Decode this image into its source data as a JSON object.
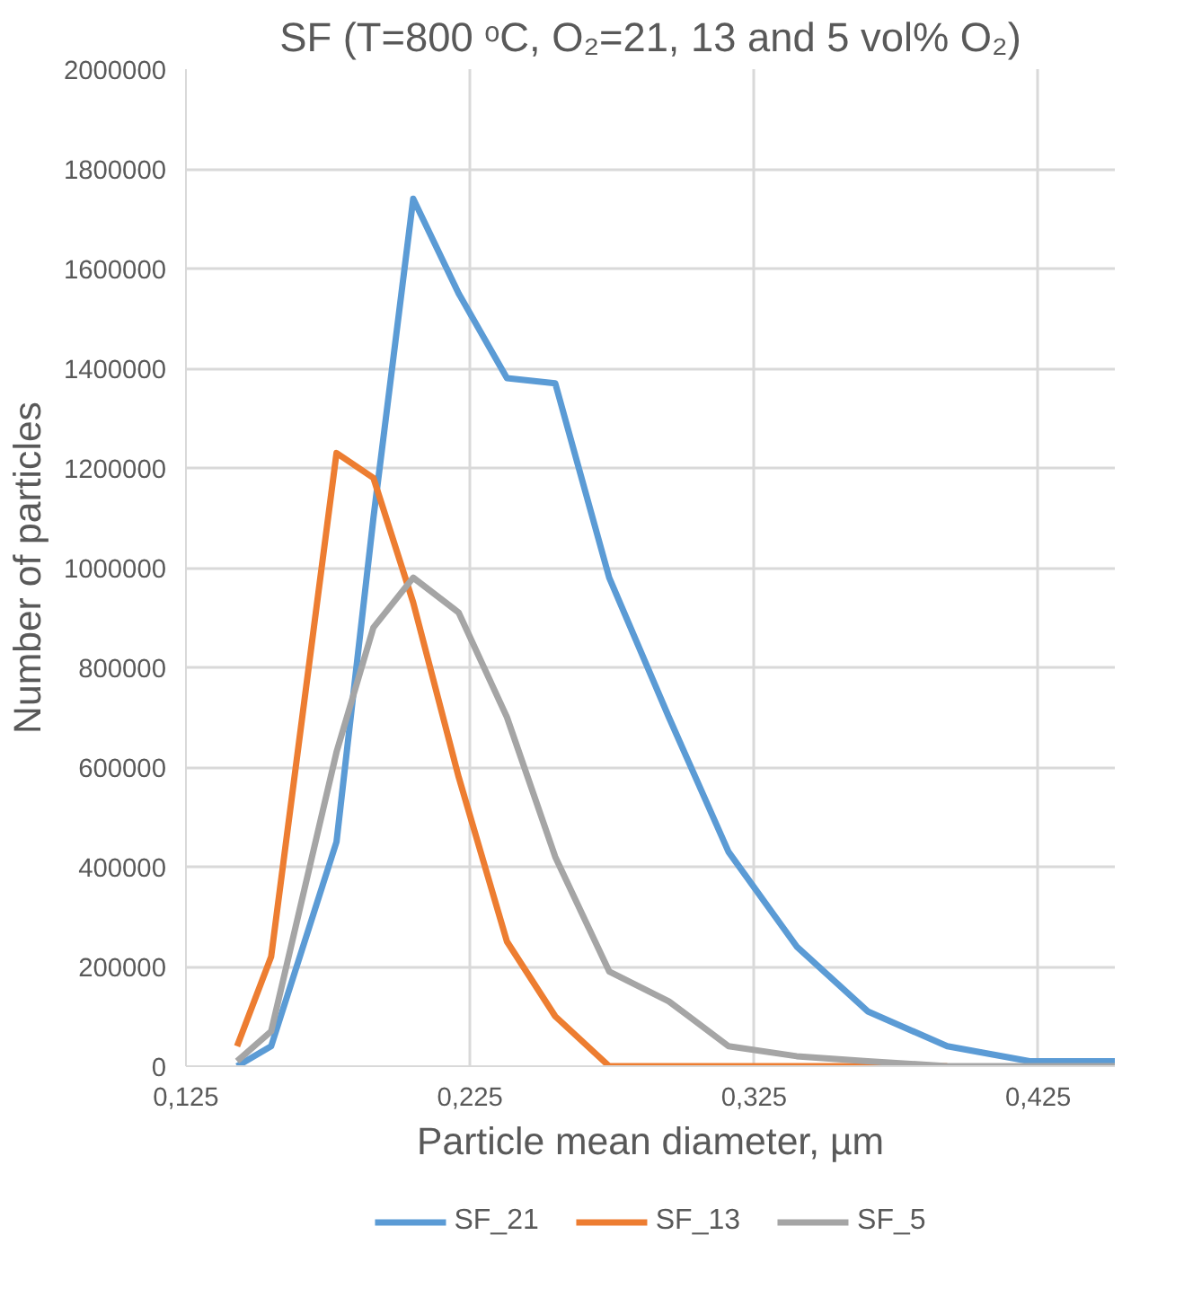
{
  "chart_data": {
    "type": "line",
    "title": "SF (T=800 ᵒC, O₂=21, 13 and 5 vol% O₂)",
    "xlabel": "Particle mean diameter, µm",
    "ylabel": "Number of particles",
    "x": [
      0.143,
      0.155,
      0.178,
      0.191,
      0.205,
      0.221,
      0.238,
      0.255,
      0.274,
      0.295,
      0.316,
      0.34,
      0.365,
      0.393,
      0.422,
      0.452
    ],
    "xlim": [
      0.125,
      0.452
    ],
    "xticks": [
      {
        "value": 0.125,
        "label": "0,125"
      },
      {
        "value": 0.225,
        "label": "0,225"
      },
      {
        "value": 0.325,
        "label": "0,325"
      },
      {
        "value": 0.425,
        "label": "0,425"
      }
    ],
    "ylim": [
      0,
      2000000
    ],
    "yticks": [
      0,
      200000,
      400000,
      600000,
      800000,
      1000000,
      1200000,
      1400000,
      1600000,
      1800000,
      2000000
    ],
    "series": [
      {
        "name": "SF_21",
        "color": "#5b9bd5",
        "values": [
          0,
          40000,
          450000,
          1100000,
          1740000,
          1550000,
          1380000,
          1370000,
          980000,
          700000,
          430000,
          240000,
          110000,
          40000,
          10000,
          10000
        ]
      },
      {
        "name": "SF_13",
        "color": "#ed7d31",
        "values": [
          40000,
          220000,
          1230000,
          1180000,
          930000,
          580000,
          250000,
          100000,
          0,
          0,
          0,
          0,
          0,
          0,
          null,
          null
        ]
      },
      {
        "name": "SF_5",
        "color": "#a5a5a5",
        "values": [
          10000,
          70000,
          630000,
          880000,
          980000,
          910000,
          700000,
          420000,
          190000,
          130000,
          40000,
          20000,
          10000,
          0,
          0,
          0
        ]
      }
    ],
    "grid": true,
    "legend": "bottom",
    "marker": "none",
    "line_style": "solid"
  }
}
